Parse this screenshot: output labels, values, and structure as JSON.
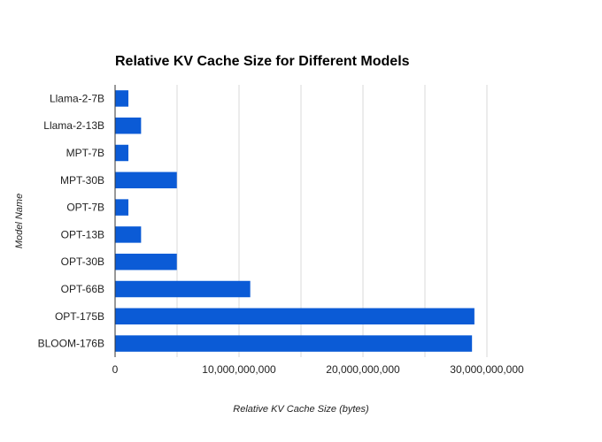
{
  "chart_data": {
    "type": "bar",
    "orientation": "horizontal",
    "title": "Relative KV Cache Size for Different Models",
    "xlabel": "Relative KV Cache Size (bytes)",
    "ylabel": "Model Name",
    "categories": [
      "Llama-2-7B",
      "Llama-2-13B",
      "MPT-7B",
      "MPT-30B",
      "OPT-7B",
      "OPT-13B",
      "OPT-30B",
      "OPT-66B",
      "OPT-175B",
      "BLOOM-176B"
    ],
    "values": [
      1073741824,
      2097152000,
      1073741824,
      4980736000,
      1073741824,
      2097152000,
      4980736000,
      10905190400,
      28991029248,
      28797968384
    ],
    "xlim": [
      0,
      30000000000
    ],
    "xticks": [
      0,
      10000000000,
      20000000000,
      30000000000
    ],
    "xtick_labels": [
      "0",
      "10,000,000,000",
      "20,000,000,000",
      "30,000,000,000"
    ],
    "bar_color": "#0b5bd6",
    "grid": true,
    "legend": "none"
  }
}
